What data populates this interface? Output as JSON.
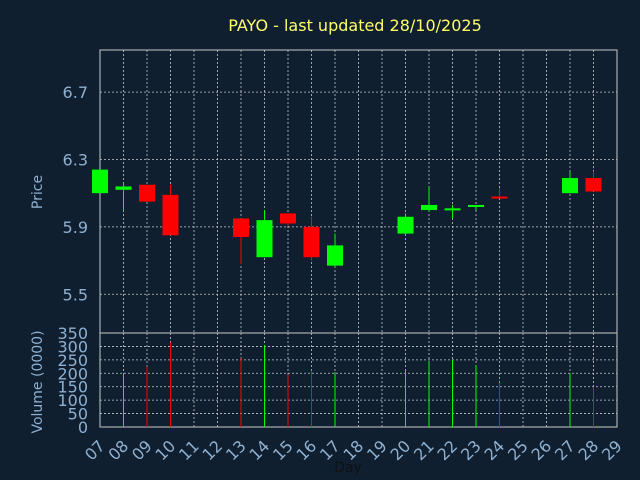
{
  "chart_data": [
    {
      "type": "candlestick",
      "title": "PAYO - last updated 28/10/2025",
      "ylabel": "Price",
      "ylim": [
        5.27,
        6.95
      ],
      "yticks": [
        5.5,
        5.9,
        6.3,
        6.7
      ],
      "ytick_labels": [
        "5.5",
        "5.9",
        "6.3",
        "6.7"
      ],
      "grid": true,
      "candles": [
        {
          "day": 7,
          "open": 6.1,
          "close": 6.24,
          "high": 6.24,
          "low": 6.1
        },
        {
          "day": 8,
          "open": 6.12,
          "close": 6.14,
          "high": 6.16,
          "low": 5.99
        },
        {
          "day": 9,
          "open": 6.15,
          "close": 6.05,
          "high": 6.15,
          "low": 6.05
        },
        {
          "day": 10,
          "open": 6.09,
          "close": 5.85,
          "high": 6.15,
          "low": 5.85
        },
        {
          "day": 13,
          "open": 5.95,
          "close": 5.84,
          "high": 5.95,
          "low": 5.68
        },
        {
          "day": 14,
          "open": 5.72,
          "close": 5.94,
          "high": 6.0,
          "low": 5.72
        },
        {
          "day": 15,
          "open": 5.98,
          "close": 5.92,
          "high": 5.98,
          "low": 5.91
        },
        {
          "day": 16,
          "open": 5.9,
          "close": 5.72,
          "high": 5.96,
          "low": 5.7
        },
        {
          "day": 17,
          "open": 5.67,
          "close": 5.79,
          "high": 5.86,
          "low": 5.66
        },
        {
          "day": 20,
          "open": 5.86,
          "close": 5.96,
          "high": 5.98,
          "low": 5.85
        },
        {
          "day": 21,
          "open": 6.0,
          "close": 6.03,
          "high": 6.14,
          "low": 5.99
        },
        {
          "day": 22,
          "open": 6.0,
          "close": 6.01,
          "high": 6.03,
          "low": 5.95
        },
        {
          "day": 23,
          "open": 6.02,
          "close": 6.03,
          "high": 6.03,
          "low": 6.0
        },
        {
          "day": 24,
          "open": 6.08,
          "close": 6.07,
          "high": 6.13,
          "low": 6.07
        },
        {
          "day": 27,
          "open": 6.1,
          "close": 6.19,
          "high": 6.23,
          "low": 6.1
        },
        {
          "day": 28,
          "open": 6.19,
          "close": 6.11,
          "high": 6.23,
          "low": 6.11
        }
      ],
      "colors": {
        "up": "#00ff00",
        "down": "#ff0000",
        "grid": "#c8c8c8",
        "plot_bg": "#0f1f2f",
        "axis_text": "#8fb0d0"
      }
    },
    {
      "type": "bar",
      "ylabel": "Volume (0000)",
      "ylim": [
        0,
        350
      ],
      "yticks": [
        0,
        50,
        100,
        150,
        200,
        250,
        300,
        350
      ],
      "ytick_labels": [
        "0",
        "50",
        "100",
        "150",
        "200",
        "250",
        "300",
        "350"
      ],
      "xlabel": "Day",
      "x_ticks": [
        7,
        8,
        9,
        10,
        11,
        12,
        13,
        14,
        15,
        16,
        17,
        18,
        19,
        20,
        21,
        22,
        23,
        24,
        25,
        26,
        27,
        28,
        29
      ],
      "x_tick_labels": [
        "07",
        "08",
        "09",
        "10",
        "11",
        "12",
        "13",
        "14",
        "15",
        "16",
        "17",
        "18",
        "19",
        "20",
        "21",
        "22",
        "23",
        "24",
        "25",
        "26",
        "27",
        "28",
        "29"
      ],
      "x_range": [
        7,
        29
      ],
      "grid": true,
      "volumes": [
        {
          "day": 8,
          "value": 200,
          "direction": "up"
        },
        {
          "day": 9,
          "value": 225,
          "direction": "down"
        },
        {
          "day": 10,
          "value": 315,
          "direction": "down"
        },
        {
          "day": 13,
          "value": 255,
          "direction": "down"
        },
        {
          "day": 14,
          "value": 305,
          "direction": "up"
        },
        {
          "day": 15,
          "value": 195,
          "direction": "down"
        },
        {
          "day": 16,
          "value": 210,
          "direction": "down"
        },
        {
          "day": 17,
          "value": 205,
          "direction": "up"
        },
        {
          "day": 20,
          "value": 210,
          "direction": "up"
        },
        {
          "day": 21,
          "value": 245,
          "direction": "up"
        },
        {
          "day": 22,
          "value": 250,
          "direction": "up"
        },
        {
          "day": 23,
          "value": 230,
          "direction": "up"
        },
        {
          "day": 24,
          "value": 165,
          "direction": "down"
        },
        {
          "day": 27,
          "value": 200,
          "direction": "up"
        },
        {
          "day": 28,
          "value": 150,
          "direction": "down"
        }
      ]
    }
  ]
}
